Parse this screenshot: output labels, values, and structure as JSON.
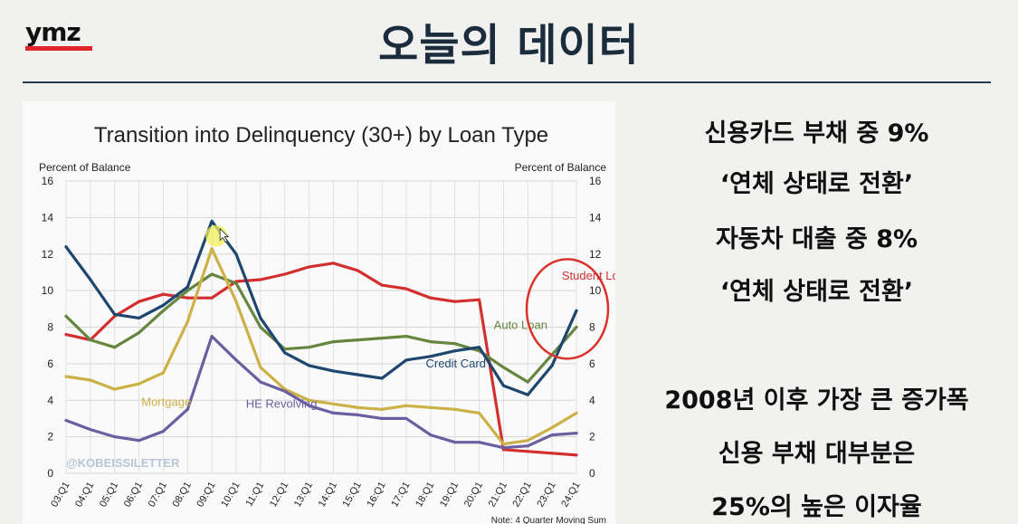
{
  "header": {
    "logo": "ymz",
    "title": "오늘의 데이터"
  },
  "chart_data": {
    "type": "line",
    "title": "Transition into Delinquency (30+) by Loan Type",
    "ylabel_left": "Percent of Balance",
    "ylabel_right": "Percent of Balance",
    "ylim": [
      0,
      16
    ],
    "yticks": [
      "0",
      "2",
      "4",
      "6",
      "8",
      "10",
      "12",
      "14",
      "16"
    ],
    "categories": [
      "03:Q1",
      "04:Q1",
      "05:Q1",
      "06:Q1",
      "07:Q1",
      "08:Q1",
      "09:Q1",
      "10:Q1",
      "11:Q1",
      "12:Q1",
      "13:Q1",
      "14:Q1",
      "15:Q1",
      "16:Q1",
      "17:Q1",
      "18:Q1",
      "19:Q1",
      "20:Q1",
      "21:Q1",
      "22:Q1",
      "23:Q1",
      "24:Q1"
    ],
    "grid": true,
    "watermark": "@KOBEISSILETTER",
    "note": "Note: 4 Quarter Moving Sum",
    "series": [
      {
        "name": "Student Loan",
        "color": "#d42f2f",
        "label_at": [
          20.4,
          10.6
        ],
        "values": [
          7.6,
          7.3,
          8.6,
          9.4,
          9.8,
          9.6,
          9.6,
          10.5,
          10.6,
          10.9,
          11.3,
          11.5,
          11.1,
          10.3,
          10.1,
          9.6,
          9.4,
          9.5,
          1.3,
          1.2,
          1.1,
          1.0
        ]
      },
      {
        "name": "Auto Loan",
        "color": "#66853e",
        "label_at": [
          17.6,
          7.9
        ],
        "values": [
          8.6,
          7.3,
          6.9,
          7.7,
          8.9,
          10.0,
          10.9,
          10.4,
          8.0,
          6.8,
          6.9,
          7.2,
          7.3,
          7.4,
          7.5,
          7.2,
          7.1,
          6.7,
          5.8,
          5.0,
          6.5,
          8.0
        ]
      },
      {
        "name": "Credit Card",
        "color": "#1f466f",
        "label_at": [
          14.8,
          5.8
        ],
        "values": [
          12.4,
          10.6,
          8.7,
          8.5,
          9.2,
          10.2,
          13.8,
          12.0,
          8.5,
          6.6,
          5.9,
          5.6,
          5.4,
          5.2,
          6.2,
          6.4,
          6.7,
          6.9,
          4.8,
          4.3,
          5.9,
          8.9
        ]
      },
      {
        "name": "Mortgage",
        "color": "#ccb147",
        "label_at": [
          3.1,
          3.7
        ],
        "values": [
          5.3,
          5.1,
          4.6,
          4.9,
          5.5,
          8.3,
          12.3,
          9.4,
          5.8,
          4.6,
          4.0,
          3.8,
          3.6,
          3.5,
          3.7,
          3.6,
          3.5,
          3.3,
          1.6,
          1.8,
          2.5,
          3.3
        ]
      },
      {
        "name": "HE Revolving",
        "color": "#6c5fa0",
        "label_at": [
          7.4,
          3.6
        ],
        "values": [
          2.9,
          2.4,
          2.0,
          1.8,
          2.3,
          3.5,
          7.5,
          6.2,
          5.0,
          4.5,
          3.7,
          3.3,
          3.2,
          3.0,
          3.0,
          2.1,
          1.7,
          1.7,
          1.4,
          1.5,
          2.1,
          2.2
        ]
      }
    ],
    "annotations": [
      {
        "type": "ellipse",
        "color": "#d9342c",
        "label": "red-circle-highlight"
      },
      {
        "type": "highlight",
        "color": "#f1f05a",
        "label": "cursor-highlight"
      }
    ]
  },
  "notes": [
    "신용카드 부채 중 9%",
    "‘연체 상태로 전환’",
    "자동차 대출 중 8%",
    "‘연체 상태로 전환’",
    "2008년 이후 가장 큰 증가폭",
    "신용 부채 대부분은",
    "25%의 높은 이자율"
  ]
}
